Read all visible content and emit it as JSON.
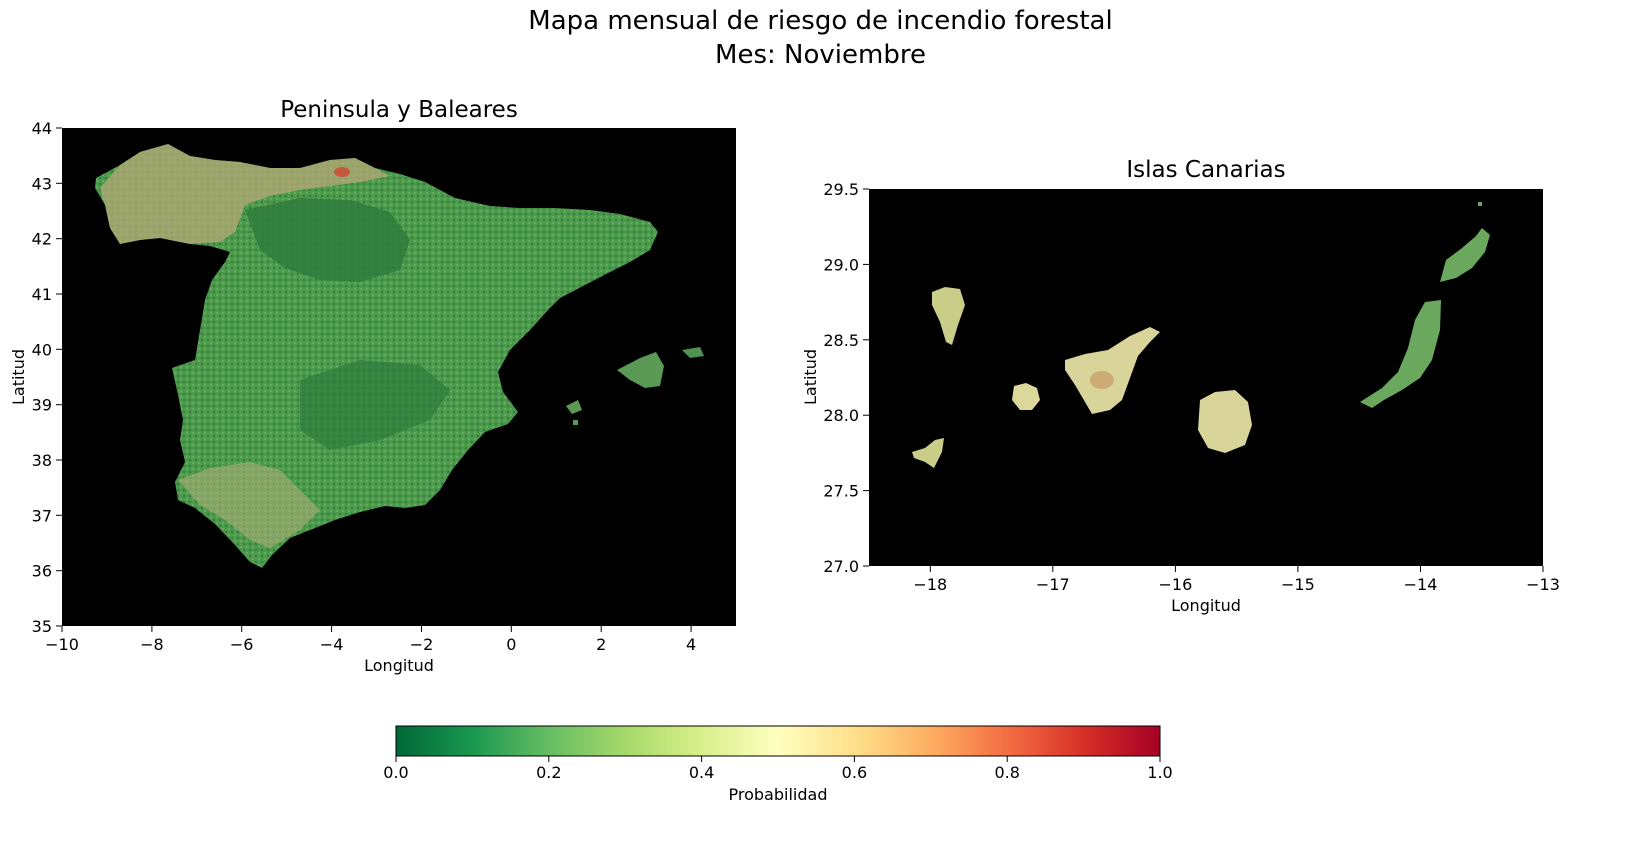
{
  "figure": {
    "title_line1": "Mapa mensual de riesgo de incendio forestal",
    "title_line2": "Mes: Noviembre"
  },
  "panels": {
    "peninsula": {
      "title": "Peninsula y Baleares",
      "xlabel": "Longitud",
      "ylabel": "Latitud",
      "xlim": [
        -10,
        5
      ],
      "ylim": [
        35,
        44
      ],
      "xticks": [
        "−10",
        "−8",
        "−6",
        "−4",
        "−2",
        "0",
        "2",
        "4"
      ],
      "yticks": [
        "35",
        "36",
        "37",
        "38",
        "39",
        "40",
        "41",
        "42",
        "43",
        "44"
      ],
      "background": "#000000"
    },
    "canarias": {
      "title": "Islas Canarias",
      "xlabel": "Longitud",
      "ylabel": "Latitud",
      "xlim": [
        -18.5,
        -13
      ],
      "ylim": [
        27.0,
        29.5
      ],
      "xticks": [
        "−18",
        "−17",
        "−16",
        "−15",
        "−14",
        "−13"
      ],
      "yticks": [
        "27.0",
        "27.5",
        "28.0",
        "28.5",
        "29.0",
        "29.5"
      ],
      "background": "#000000"
    }
  },
  "colorbar": {
    "label": "Probabilidad",
    "ticks": [
      "0.0",
      "0.2",
      "0.4",
      "0.6",
      "0.8",
      "1.0"
    ],
    "range": [
      0,
      1
    ],
    "colormap": "RdYlGn_r",
    "colors": [
      "#006837",
      "#1a9850",
      "#66bd63",
      "#a6d96a",
      "#d9ef8b",
      "#ffffbf",
      "#fee08b",
      "#fdae61",
      "#f46d43",
      "#d73027",
      "#a50026"
    ]
  },
  "legend_colors": {
    "land_low": "#3f8f45",
    "land_mid": "#7fae5a",
    "land_high": "#c6b47a",
    "canary_light": "#dcd89a"
  }
}
